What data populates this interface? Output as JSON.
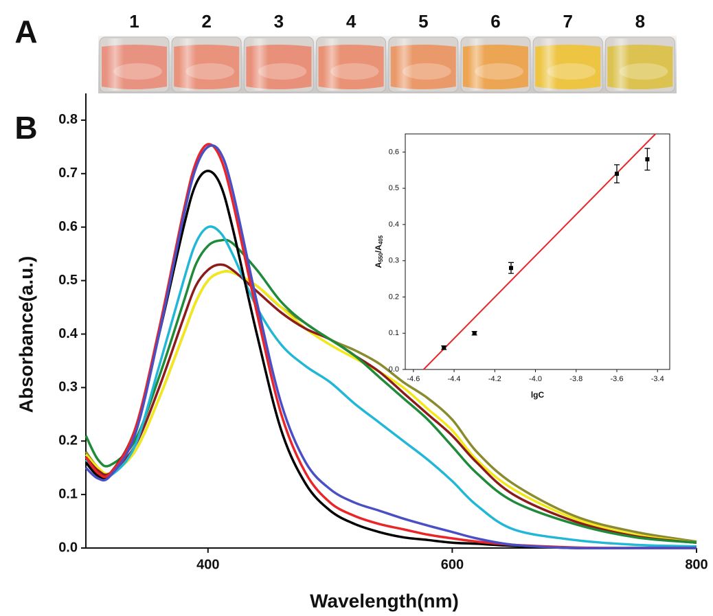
{
  "panels": [
    "A",
    "B"
  ],
  "vials": {
    "labels": [
      "1",
      "2",
      "3",
      "4",
      "5",
      "6",
      "7",
      "8"
    ],
    "colors": [
      "#e98f7c",
      "#ea8f78",
      "#e98c74",
      "#ea8e70",
      "#eb9764",
      "#eda24c",
      "#eec43a",
      "#dcc24a"
    ]
  },
  "chart_data": [
    {
      "type": "line",
      "xlabel": "Wavelength(nm)",
      "ylabel": "Absorbance(a.u.)",
      "x": [
        300,
        310,
        320,
        340,
        360,
        380,
        390,
        400,
        410,
        420,
        440,
        460,
        480,
        500,
        520,
        540,
        560,
        580,
        600,
        620,
        650,
        700,
        750,
        800
      ],
      "xlim": [
        300,
        800
      ],
      "xticks": [
        400,
        600,
        800
      ],
      "ylim": [
        0,
        0.85
      ],
      "yticks": [
        {
          "value": 0,
          "label": "0.0"
        },
        0.1,
        0.2,
        0.3,
        0.4,
        0.5,
        0.6,
        0.7,
        0.8
      ],
      "series": [
        {
          "color": "#8a8a2e",
          "values": [
            0.18,
            0.15,
            0.14,
            0.18,
            0.28,
            0.4,
            0.46,
            0.5,
            0.515,
            0.515,
            0.49,
            0.45,
            0.42,
            0.39,
            0.37,
            0.345,
            0.31,
            0.28,
            0.24,
            0.18,
            0.12,
            0.06,
            0.03,
            0.012
          ]
        },
        {
          "color": "#f2e81a",
          "values": [
            0.175,
            0.15,
            0.14,
            0.18,
            0.28,
            0.4,
            0.46,
            0.5,
            0.515,
            0.515,
            0.49,
            0.45,
            0.41,
            0.38,
            0.355,
            0.33,
            0.3,
            0.26,
            0.22,
            0.165,
            0.11,
            0.055,
            0.025,
            0.01
          ]
        },
        {
          "color": "#8c1c1c",
          "values": [
            0.17,
            0.145,
            0.14,
            0.19,
            0.3,
            0.43,
            0.49,
            0.52,
            0.53,
            0.52,
            0.48,
            0.44,
            0.41,
            0.39,
            0.36,
            0.33,
            0.29,
            0.25,
            0.21,
            0.16,
            0.1,
            0.05,
            0.022,
            0.01
          ]
        },
        {
          "color": "#1e8a3a",
          "values": [
            0.21,
            0.165,
            0.155,
            0.2,
            0.32,
            0.46,
            0.53,
            0.565,
            0.575,
            0.57,
            0.52,
            0.46,
            0.42,
            0.39,
            0.36,
            0.32,
            0.28,
            0.24,
            0.19,
            0.14,
            0.087,
            0.045,
            0.02,
            0.01
          ]
        },
        {
          "color": "#22b7d6",
          "values": [
            0.165,
            0.14,
            0.135,
            0.19,
            0.34,
            0.5,
            0.57,
            0.6,
            0.59,
            0.55,
            0.45,
            0.38,
            0.34,
            0.31,
            0.27,
            0.235,
            0.2,
            0.165,
            0.125,
            0.08,
            0.035,
            0.015,
            0.006,
            0.003
          ]
        },
        {
          "color": "#000000",
          "values": [
            0.16,
            0.135,
            0.14,
            0.22,
            0.4,
            0.6,
            0.68,
            0.705,
            0.68,
            0.6,
            0.4,
            0.22,
            0.12,
            0.07,
            0.045,
            0.03,
            0.02,
            0.015,
            0.01,
            0.008,
            0.004,
            0,
            0,
            0
          ]
        },
        {
          "color": "#e8262a",
          "values": [
            0.17,
            0.14,
            0.14,
            0.22,
            0.41,
            0.63,
            0.72,
            0.755,
            0.73,
            0.65,
            0.44,
            0.25,
            0.14,
            0.085,
            0.06,
            0.045,
            0.035,
            0.025,
            0.018,
            0.012,
            0.006,
            0.001,
            0,
            0
          ]
        },
        {
          "color": "#4a4fc4",
          "values": [
            0.15,
            0.13,
            0.135,
            0.21,
            0.4,
            0.62,
            0.71,
            0.75,
            0.74,
            0.67,
            0.46,
            0.27,
            0.16,
            0.11,
            0.085,
            0.07,
            0.055,
            0.042,
            0.03,
            0.018,
            0.006,
            0,
            0,
            0
          ]
        }
      ]
    },
    {
      "type": "scatter",
      "xlabel": "lgC",
      "ylabel": [
        "A",
        "550",
        "/A",
        "405"
      ],
      "x": [
        -4.45,
        -4.3,
        -4.12,
        -3.6,
        -3.45
      ],
      "values": [
        0.06,
        0.1,
        0.28,
        0.54,
        0.58
      ],
      "errors": [
        0.005,
        0.005,
        0.015,
        0.025,
        0.03
      ],
      "color": "#000000",
      "fit": {
        "color": "#e8262a",
        "x": [
          -4.55,
          -3.41
        ],
        "y": [
          0,
          0.65
        ]
      },
      "xlim": [
        -4.64,
        -3.34
      ],
      "xticks": [
        -4.6,
        -4.4,
        -4.2,
        {
          "value": -4,
          "label": "-4.0"
        },
        -3.8,
        -3.6,
        -3.4
      ],
      "ylim": [
        0,
        0.65
      ],
      "yticks": [
        {
          "value": 0,
          "label": "0.0"
        },
        0.1,
        0.2,
        0.3,
        0.4,
        0.5,
        0.6
      ]
    }
  ]
}
